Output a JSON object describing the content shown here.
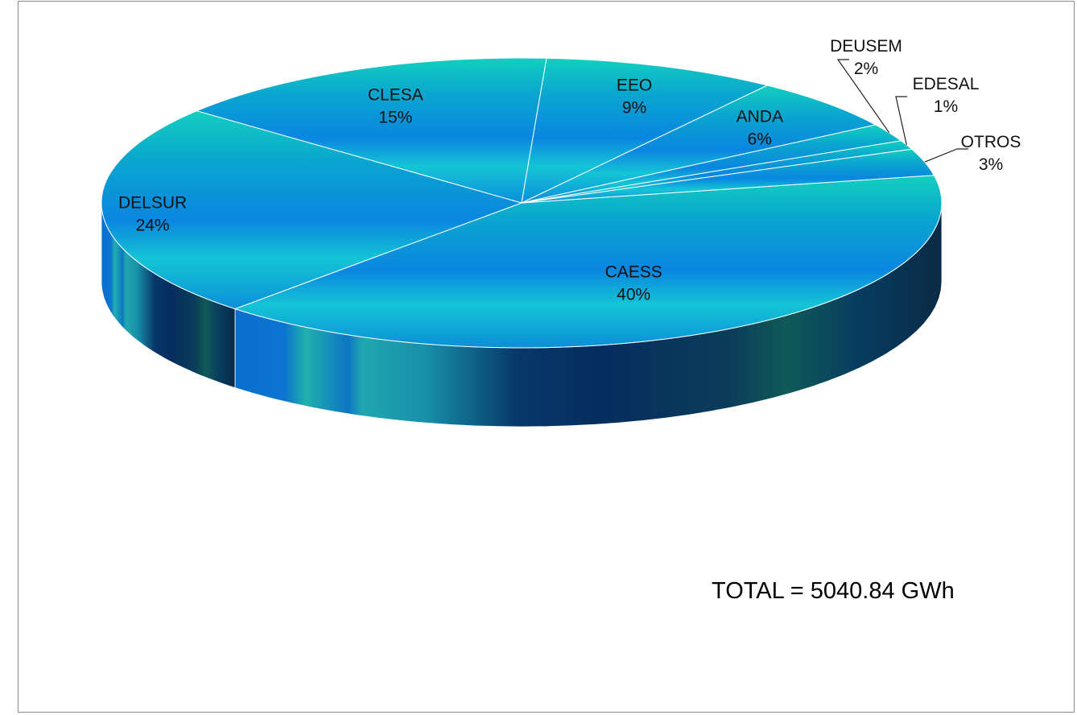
{
  "chart_data": {
    "type": "pie",
    "style": "3d",
    "slices": [
      {
        "label": "CAESS",
        "value": 40,
        "pct_label": "40%"
      },
      {
        "label": "DELSUR",
        "value": 24,
        "pct_label": "24%"
      },
      {
        "label": "CLESA",
        "value": 15,
        "pct_label": "15%"
      },
      {
        "label": "EEO",
        "value": 9,
        "pct_label": "9%"
      },
      {
        "label": "ANDA",
        "value": 6,
        "pct_label": "6%"
      },
      {
        "label": "DEUSEM",
        "value": 2,
        "pct_label": "2%"
      },
      {
        "label": "EDESAL",
        "value": 1,
        "pct_label": "1%"
      },
      {
        "label": "OTROS",
        "value": 3,
        "pct_label": "3%"
      }
    ],
    "colors": {
      "top_light": "#12d3c0",
      "top_dark": "#0a86e0",
      "side_dark": "#07335f",
      "side_teal": "#21a9b4",
      "edge": "#ffffff"
    }
  },
  "total_label": "TOTAL = 5040.84 GWh"
}
